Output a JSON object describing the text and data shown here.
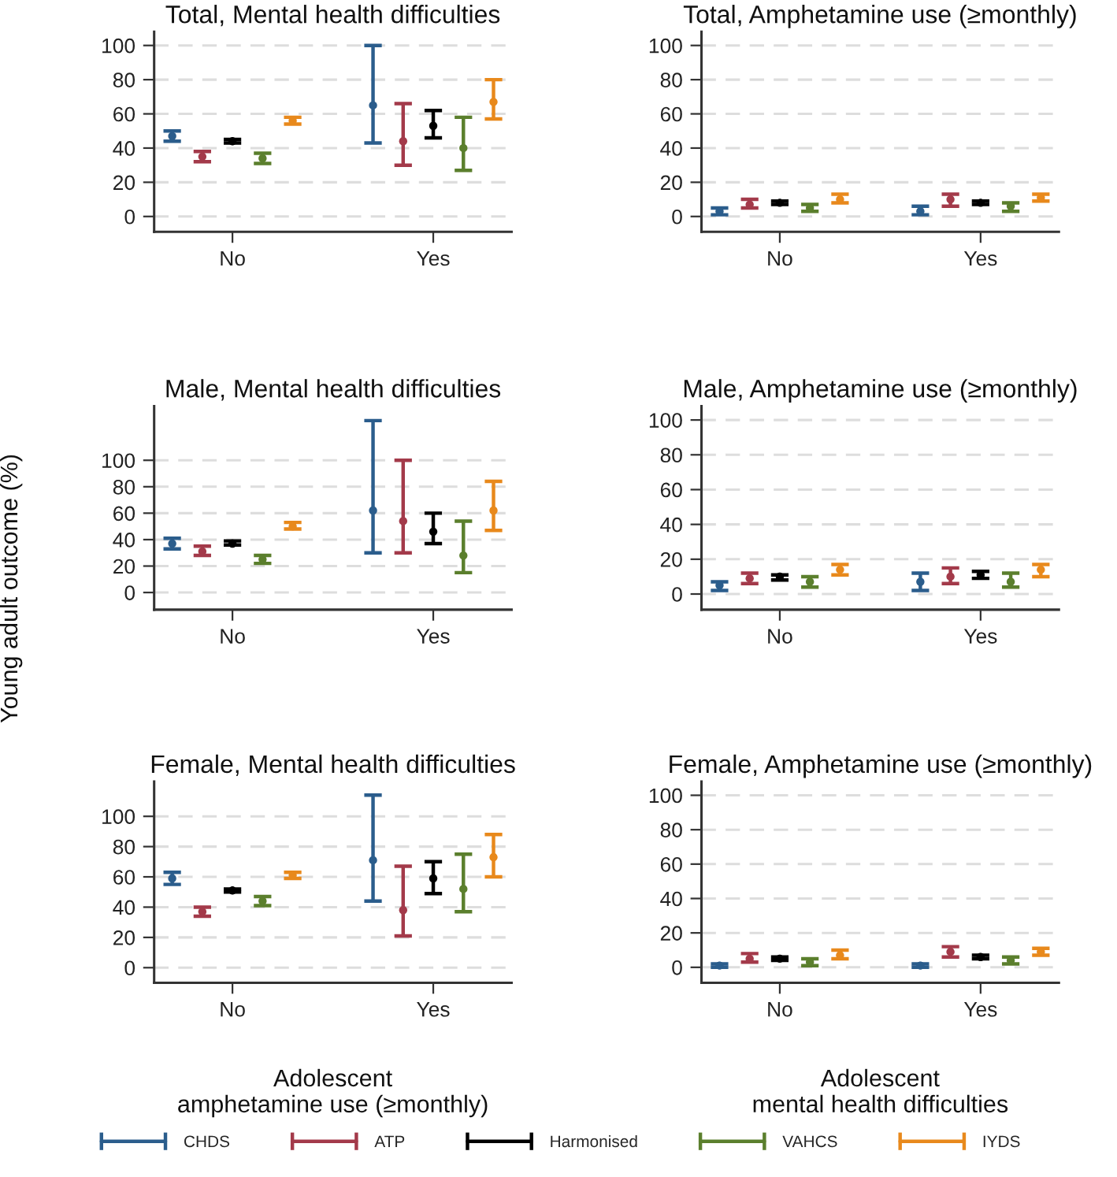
{
  "chart_data": [
    {
      "type": "scatter",
      "title": "Total, Mental health difficulties",
      "categories": [
        "No",
        "Yes"
      ],
      "ylim": [
        -9,
        108
      ],
      "yticks": [
        0,
        20,
        40,
        60,
        80,
        100
      ],
      "grid": "y",
      "marker": "circle",
      "legend": "bottom",
      "series": [
        {
          "name": "CHDS",
          "color": "#2b5d8c",
          "values": [
            47,
            65
          ],
          "errors": [
            [
              44,
              50
            ],
            [
              43,
              100
            ]
          ]
        },
        {
          "name": "ATP",
          "color": "#a33a4a",
          "values": [
            35,
            44
          ],
          "errors": [
            [
              32,
              38
            ],
            [
              30,
              66
            ]
          ]
        },
        {
          "name": "Harmonised",
          "color": "#000000",
          "values": [
            44,
            53
          ],
          "errors": [
            [
              43,
              45
            ],
            [
              46,
              62
            ]
          ]
        },
        {
          "name": "VAHCS",
          "color": "#5b7f2d",
          "values": [
            34,
            40
          ],
          "errors": [
            [
              31,
              37
            ],
            [
              27,
              58
            ]
          ]
        },
        {
          "name": "IYDS",
          "color": "#e8891c",
          "values": [
            56,
            67
          ],
          "errors": [
            [
              54,
              58
            ],
            [
              57,
              80
            ]
          ]
        }
      ]
    },
    {
      "type": "scatter",
      "title": "Total, Amphetamine use (≥monthly)",
      "categories": [
        "No",
        "Yes"
      ],
      "ylim": [
        -9,
        108
      ],
      "yticks": [
        0,
        20,
        40,
        60,
        80,
        100
      ],
      "grid": "y",
      "marker": "circle",
      "series": [
        {
          "color": "#2b5d8c",
          "values": [
            3,
            3
          ],
          "errors": [
            [
              1,
              5
            ],
            [
              1,
              6
            ]
          ]
        },
        {
          "color": "#a33a4a",
          "values": [
            7,
            10
          ],
          "errors": [
            [
              5,
              10
            ],
            [
              6,
              13
            ]
          ]
        },
        {
          "color": "#000000",
          "values": [
            8,
            8
          ],
          "errors": [
            [
              7,
              9
            ],
            [
              7,
              9
            ]
          ]
        },
        {
          "color": "#5b7f2d",
          "values": [
            5,
            6
          ],
          "errors": [
            [
              3,
              7
            ],
            [
              3,
              8
            ]
          ]
        },
        {
          "color": "#e8891c",
          "values": [
            10,
            11
          ],
          "errors": [
            [
              8,
              13
            ],
            [
              9,
              13
            ]
          ]
        }
      ]
    },
    {
      "type": "scatter",
      "title": "Male, Mental health difficulties",
      "ylabel": "Young adult outcome (%)",
      "categories": [
        "No",
        "Yes"
      ],
      "ylim": [
        -13,
        141
      ],
      "yticks": [
        0,
        20,
        40,
        60,
        80,
        100
      ],
      "grid": "y",
      "marker": "circle",
      "series": [
        {
          "color": "#2b5d8c",
          "values": [
            37,
            62
          ],
          "errors": [
            [
              33,
              41
            ],
            [
              30,
              130
            ]
          ]
        },
        {
          "color": "#a33a4a",
          "values": [
            31,
            54
          ],
          "errors": [
            [
              28,
              35
            ],
            [
              30,
              100
            ]
          ]
        },
        {
          "color": "#000000",
          "values": [
            37,
            46
          ],
          "errors": [
            [
              36,
              39
            ],
            [
              37,
              60
            ]
          ]
        },
        {
          "color": "#5b7f2d",
          "values": [
            25,
            28
          ],
          "errors": [
            [
              22,
              28
            ],
            [
              15,
              54
            ]
          ]
        },
        {
          "color": "#e8891c",
          "values": [
            50,
            62
          ],
          "errors": [
            [
              48,
              53
            ],
            [
              47,
              84
            ]
          ]
        }
      ]
    },
    {
      "type": "scatter",
      "title": "Male, Amphetamine use (≥monthly)",
      "categories": [
        "No",
        "Yes"
      ],
      "ylim": [
        -9,
        108
      ],
      "yticks": [
        0,
        20,
        40,
        60,
        80,
        100
      ],
      "grid": "y",
      "marker": "circle",
      "series": [
        {
          "color": "#2b5d8c",
          "values": [
            5,
            7
          ],
          "errors": [
            [
              2,
              7
            ],
            [
              2,
              12
            ]
          ]
        },
        {
          "color": "#a33a4a",
          "values": [
            9,
            10
          ],
          "errors": [
            [
              6,
              12
            ],
            [
              6,
              15
            ]
          ]
        },
        {
          "color": "#000000",
          "values": [
            10,
            11
          ],
          "errors": [
            [
              8,
              11
            ],
            [
              9,
              13
            ]
          ]
        },
        {
          "color": "#5b7f2d",
          "values": [
            7,
            7
          ],
          "errors": [
            [
              4,
              10
            ],
            [
              4,
              12
            ]
          ]
        },
        {
          "color": "#e8891c",
          "values": [
            14,
            14
          ],
          "errors": [
            [
              11,
              17
            ],
            [
              10,
              17
            ]
          ]
        }
      ]
    },
    {
      "type": "scatter",
      "title": "Female, Mental health difficulties",
      "xlabel": "Adolescent\namphetamine use (≥monthly)",
      "categories": [
        "No",
        "Yes"
      ],
      "ylim": [
        -10,
        123
      ],
      "yticks": [
        0,
        20,
        40,
        60,
        80,
        100
      ],
      "grid": "y",
      "marker": "circle",
      "series": [
        {
          "color": "#2b5d8c",
          "values": [
            59,
            71
          ],
          "errors": [
            [
              55,
              63
            ],
            [
              44,
              114
            ]
          ]
        },
        {
          "color": "#a33a4a",
          "values": [
            37,
            38
          ],
          "errors": [
            [
              34,
              40
            ],
            [
              21,
              67
            ]
          ]
        },
        {
          "color": "#000000",
          "values": [
            51,
            59
          ],
          "errors": [
            [
              50,
              52
            ],
            [
              49,
              70
            ]
          ]
        },
        {
          "color": "#5b7f2d",
          "values": [
            44,
            52
          ],
          "errors": [
            [
              41,
              47
            ],
            [
              37,
              75
            ]
          ]
        },
        {
          "color": "#e8891c",
          "values": [
            61,
            73
          ],
          "errors": [
            [
              59,
              63
            ],
            [
              60,
              88
            ]
          ]
        }
      ]
    },
    {
      "type": "scatter",
      "title": "Female, Amphetamine use (≥monthly)",
      "xlabel": "Adolescent\nmental health difficulties",
      "categories": [
        "No",
        "Yes"
      ],
      "ylim": [
        -9,
        108
      ],
      "yticks": [
        0,
        20,
        40,
        60,
        80,
        100
      ],
      "grid": "y",
      "marker": "circle",
      "series": [
        {
          "color": "#2b5d8c",
          "values": [
            1,
            1
          ],
          "errors": [
            [
              0,
              2
            ],
            [
              0,
              2
            ]
          ]
        },
        {
          "color": "#a33a4a",
          "values": [
            5,
            9
          ],
          "errors": [
            [
              3,
              8
            ],
            [
              6,
              12
            ]
          ]
        },
        {
          "color": "#000000",
          "values": [
            5,
            6
          ],
          "errors": [
            [
              4,
              6
            ],
            [
              5,
              7
            ]
          ]
        },
        {
          "color": "#5b7f2d",
          "values": [
            3,
            4
          ],
          "errors": [
            [
              1,
              5
            ],
            [
              2,
              6
            ]
          ]
        },
        {
          "color": "#e8891c",
          "values": [
            7,
            9
          ],
          "errors": [
            [
              5,
              10
            ],
            [
              7,
              11
            ]
          ]
        }
      ]
    }
  ]
}
